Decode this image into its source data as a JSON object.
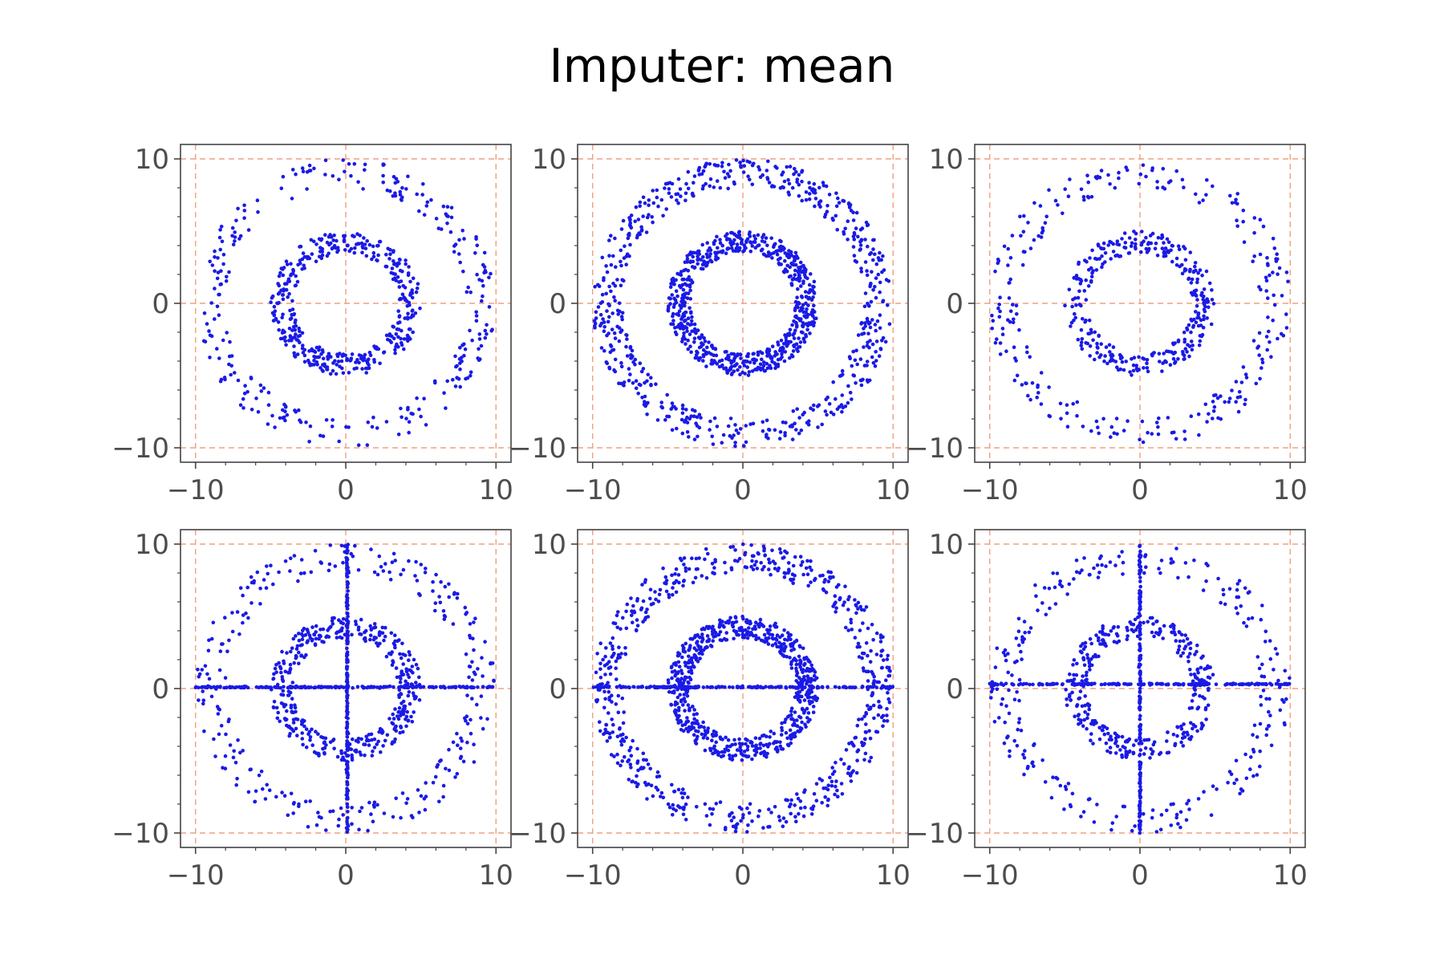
{
  "title": "Imputer: mean",
  "colors": {
    "points": "#1a1ae6",
    "grid": "#f0a080",
    "frame": "#444444",
    "tick_text": "#4d4d4d"
  },
  "chart_data": [
    {
      "type": "scatter",
      "title": "",
      "xlabel": "",
      "ylabel": "",
      "xlim": [
        -11,
        11
      ],
      "ylim": [
        -11,
        11
      ],
      "xticks": [
        -10,
        0,
        10
      ],
      "yticks": [
        -10,
        0,
        10
      ],
      "xticklabels": [
        "−10",
        "0",
        "10"
      ],
      "yticklabels": [
        "−10",
        "0",
        "10"
      ],
      "grid": true,
      "grid_lines": [
        -10,
        0,
        10
      ],
      "marker_color": "#1a1ae6",
      "series": [
        {
          "shape": "ring",
          "center": [
            0,
            0
          ],
          "r_min": 3.5,
          "r_max": 5,
          "n": 400
        },
        {
          "shape": "ring",
          "center": [
            0,
            0
          ],
          "r_min": 8,
          "r_max": 10,
          "n": 280
        }
      ]
    },
    {
      "type": "scatter",
      "title": "",
      "xlabel": "",
      "ylabel": "",
      "xlim": [
        -11,
        11
      ],
      "ylim": [
        -11,
        11
      ],
      "xticks": [
        -10,
        0,
        10
      ],
      "yticks": [
        -10,
        0,
        10
      ],
      "xticklabels": [
        "−10",
        "0",
        "10"
      ],
      "yticklabels": [
        "−10",
        "0",
        "10"
      ],
      "grid": true,
      "grid_lines": [
        -10,
        0,
        10
      ],
      "marker_color": "#1a1ae6",
      "series": [
        {
          "shape": "ring",
          "center": [
            0,
            0
          ],
          "r_min": 3.5,
          "r_max": 5,
          "n": 650
        },
        {
          "shape": "ring",
          "center": [
            0,
            0
          ],
          "r_min": 8,
          "r_max": 10,
          "n": 600
        }
      ]
    },
    {
      "type": "scatter",
      "title": "",
      "xlabel": "",
      "ylabel": "",
      "xlim": [
        -11,
        11
      ],
      "ylim": [
        -11,
        11
      ],
      "xticks": [
        -10,
        0,
        10
      ],
      "yticks": [
        -10,
        0,
        10
      ],
      "xticklabels": [
        "−10",
        "0",
        "10"
      ],
      "yticklabels": [
        "−10",
        "0",
        "10"
      ],
      "grid": true,
      "grid_lines": [
        -10,
        0,
        10
      ],
      "marker_color": "#1a1ae6",
      "series": [
        {
          "shape": "ring",
          "center": [
            0,
            0
          ],
          "r_min": 3.5,
          "r_max": 5,
          "n": 330
        },
        {
          "shape": "ring",
          "center": [
            0,
            0
          ],
          "r_min": 8,
          "r_max": 10,
          "n": 260
        }
      ]
    },
    {
      "type": "scatter",
      "title": "",
      "xlabel": "",
      "ylabel": "",
      "xlim": [
        -11,
        11
      ],
      "ylim": [
        -11,
        11
      ],
      "xticks": [
        -10,
        0,
        10
      ],
      "yticks": [
        -10,
        0,
        10
      ],
      "xticklabels": [
        "−10",
        "0",
        "10"
      ],
      "yticklabels": [
        "−10",
        "0",
        "10"
      ],
      "grid": true,
      "grid_lines": [
        -10,
        0,
        10
      ],
      "marker_color": "#1a1ae6",
      "series": [
        {
          "shape": "ring",
          "center": [
            0,
            0
          ],
          "r_min": 3.5,
          "r_max": 5,
          "n": 400
        },
        {
          "shape": "ring",
          "center": [
            0,
            0
          ],
          "r_min": 8,
          "r_max": 10,
          "n": 280
        },
        {
          "shape": "hline",
          "y": 0.1,
          "x_range": [
            -10,
            10
          ],
          "n": 180
        },
        {
          "shape": "vline",
          "x": 0.1,
          "y_range": [
            -10,
            10
          ],
          "n": 180
        }
      ]
    },
    {
      "type": "scatter",
      "title": "",
      "xlabel": "",
      "ylabel": "",
      "xlim": [
        -11,
        11
      ],
      "ylim": [
        -11,
        11
      ],
      "xticks": [
        -10,
        0,
        10
      ],
      "yticks": [
        -10,
        0,
        10
      ],
      "xticklabels": [
        "−10",
        "0",
        "10"
      ],
      "yticklabels": [
        "−10",
        "0",
        "10"
      ],
      "grid": true,
      "grid_lines": [
        -10,
        0,
        10
      ],
      "marker_color": "#1a1ae6",
      "series": [
        {
          "shape": "ring",
          "center": [
            0,
            0
          ],
          "r_min": 3.5,
          "r_max": 5,
          "n": 650
        },
        {
          "shape": "ring",
          "center": [
            0,
            0
          ],
          "r_min": 8,
          "r_max": 10,
          "n": 600
        },
        {
          "shape": "hline",
          "y": 0.1,
          "x_range": [
            -10,
            10
          ],
          "n": 180
        }
      ]
    },
    {
      "type": "scatter",
      "title": "",
      "xlabel": "",
      "ylabel": "",
      "xlim": [
        -11,
        11
      ],
      "ylim": [
        -11,
        11
      ],
      "xticks": [
        -10,
        0,
        10
      ],
      "yticks": [
        -10,
        0,
        10
      ],
      "xticklabels": [
        "−10",
        "0",
        "10"
      ],
      "yticklabels": [
        "−10",
        "0",
        "10"
      ],
      "grid": true,
      "grid_lines": [
        -10,
        0,
        10
      ],
      "marker_color": "#1a1ae6",
      "series": [
        {
          "shape": "ring",
          "center": [
            0,
            0
          ],
          "r_min": 3.5,
          "r_max": 5,
          "n": 330
        },
        {
          "shape": "ring",
          "center": [
            0,
            0
          ],
          "r_min": 8,
          "r_max": 10,
          "n": 260
        },
        {
          "shape": "hline",
          "y": 0.3,
          "x_range": [
            -10,
            10
          ],
          "n": 180
        },
        {
          "shape": "vline",
          "x": 0.0,
          "y_range": [
            -10,
            10
          ],
          "n": 180
        }
      ]
    }
  ]
}
